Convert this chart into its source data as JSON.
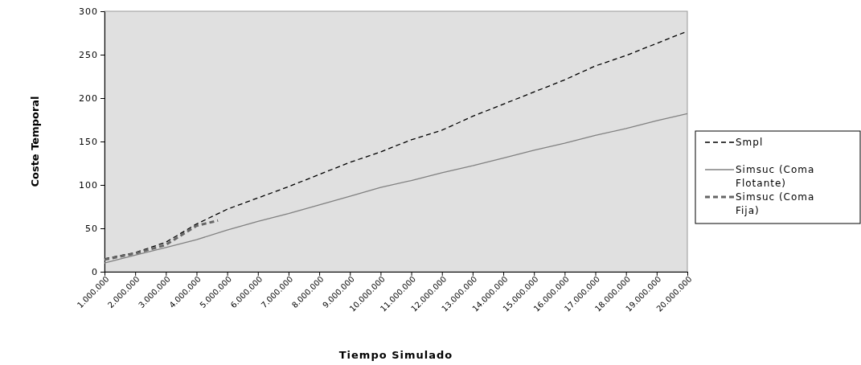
{
  "chart_data": {
    "type": "line",
    "xlabel": "Tiempo Simulado",
    "ylabel": "Coste Temporal",
    "x": [
      1000000,
      2000000,
      3000000,
      4000000,
      5000000,
      6000000,
      7000000,
      8000000,
      9000000,
      10000000,
      11000000,
      12000000,
      13000000,
      14000000,
      15000000,
      16000000,
      17000000,
      18000000,
      19000000,
      20000000
    ],
    "xlim": [
      1000000,
      20000000
    ],
    "xticks": [
      {
        "value": 1000000,
        "label": "1.000.000"
      },
      {
        "value": 2000000,
        "label": "2.000.000"
      },
      {
        "value": 3000000,
        "label": "3.000.000"
      },
      {
        "value": 4000000,
        "label": "4.000.000"
      },
      {
        "value": 5000000,
        "label": "5.000.000"
      },
      {
        "value": 6000000,
        "label": "6.000.000"
      },
      {
        "value": 7000000,
        "label": "7.000.000"
      },
      {
        "value": 8000000,
        "label": "8.000.000"
      },
      {
        "value": 9000000,
        "label": "9.000.000"
      },
      {
        "value": 10000000,
        "label": "10.000.000"
      },
      {
        "value": 11000000,
        "label": "11.000.000"
      },
      {
        "value": 12000000,
        "label": "12.000.000"
      },
      {
        "value": 13000000,
        "label": "13.000.000"
      },
      {
        "value": 14000000,
        "label": "14.000.000"
      },
      {
        "value": 15000000,
        "label": "15.000.000"
      },
      {
        "value": 16000000,
        "label": "16.000.000"
      },
      {
        "value": 17000000,
        "label": "17.000.000"
      },
      {
        "value": 18000000,
        "label": "18.000.000"
      },
      {
        "value": 19000000,
        "label": "19.000.000"
      },
      {
        "value": 20000000,
        "label": "20.000.000"
      }
    ],
    "ylim": [
      0,
      300
    ],
    "yticks": [
      0,
      50,
      100,
      150,
      200,
      250,
      300
    ],
    "grid": false,
    "legend": "right",
    "marker": "none",
    "series": [
      {
        "name": "Smpl",
        "color": "#000000",
        "line_style": "dashed",
        "values": [
          15,
          22,
          34,
          55,
          72,
          85,
          98,
          112,
          126,
          138,
          152,
          163,
          179,
          193,
          207,
          221,
          237,
          249,
          263,
          277
        ]
      },
      {
        "name": "Simsuc (Coma Flotante)",
        "color": "#808080",
        "line_style": "solid",
        "values": [
          10,
          19,
          28,
          37,
          48,
          58,
          67,
          77,
          87,
          97,
          105,
          114,
          122,
          131,
          140,
          148,
          157,
          165,
          174,
          182
        ]
      },
      {
        "name": "Simsuc (Coma Fija)",
        "color": "#666666",
        "line_style": "dashed",
        "x": [
          1000000,
          2000000,
          3000000,
          4000000,
          4700000
        ],
        "values": [
          14,
          21,
          31,
          53,
          59
        ]
      }
    ]
  }
}
